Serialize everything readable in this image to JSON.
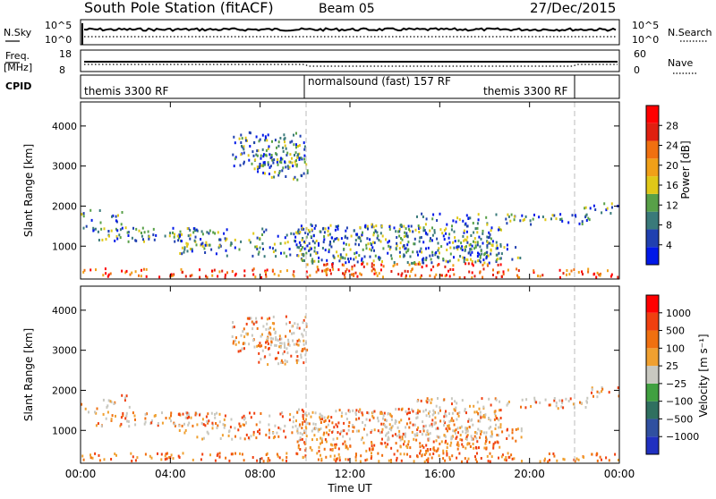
{
  "header": {
    "station": "South Pole Station (fitACF)",
    "beam": "Beam 05",
    "date": "27/Dec/2015"
  },
  "top_panel": {
    "left_label": "N.Sky",
    "left_ticks": [
      "10^5",
      "10^0"
    ],
    "right_label": "N.Search",
    "right_ticks": [
      "10^5",
      "10^0"
    ]
  },
  "freq_panel": {
    "left_label_1": "Freq.",
    "left_label_2": "[MHz]",
    "left_ticks": [
      "18",
      "8"
    ],
    "right_label": "Nave",
    "right_ticks": [
      "60",
      "0"
    ]
  },
  "cpid": {
    "label": "CPID",
    "segments": [
      "themis 3300 RF",
      "normalsound (fast) 157 RF",
      "themis 3300 RF"
    ]
  },
  "colors": {
    "power": [
      "#0018e8",
      "#2040b0",
      "#3a7a7a",
      "#58a048",
      "#e0c818",
      "#f0a018",
      "#f07010",
      "#e02010",
      "#ff0000"
    ],
    "velocity": [
      "#2030c0",
      "#3050a0",
      "#307060",
      "#40a040",
      "#c8c8c0",
      "#f0a030",
      "#f07010",
      "#f04010",
      "#ff0000"
    ]
  },
  "chart_data": [
    {
      "type": "heatmap",
      "name": "power",
      "ylabel": "Slant Range [km]",
      "xlabel": "",
      "x_ticks": [
        "00:00",
        "04:00",
        "08:00",
        "12:00",
        "16:00",
        "20:00",
        "00:00"
      ],
      "y_ticks": [
        "1000",
        "2000",
        "3000",
        "4000"
      ],
      "ylim": [
        180,
        4600
      ],
      "colorbar": {
        "label": "Power [dB]",
        "ticks": [
          "4",
          "8",
          "12",
          "16",
          "20",
          "24",
          "28"
        ],
        "range": [
          0,
          30
        ]
      }
    },
    {
      "type": "heatmap",
      "name": "velocity",
      "ylabel": "Slant Range [km]",
      "xlabel": "Time UT",
      "x_ticks": [
        "00:00",
        "04:00",
        "08:00",
        "12:00",
        "16:00",
        "20:00",
        "00:00"
      ],
      "y_ticks": [
        "1000",
        "2000",
        "3000",
        "4000"
      ],
      "ylim": [
        180,
        4600
      ],
      "colorbar": {
        "label": "Velocity [m s⁻¹]",
        "ticks": [
          "1000",
          "500",
          "100",
          "25",
          "−25",
          "−100",
          "−500",
          "−1000"
        ]
      }
    }
  ]
}
